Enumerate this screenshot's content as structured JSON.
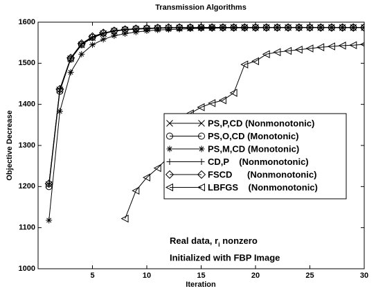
{
  "chart_data": {
    "type": "line",
    "title": "Transmission Algorithms",
    "x_label": "Iteration",
    "y_label": "Objective Decrease",
    "x": [
      1,
      2,
      3,
      4,
      5,
      6,
      7,
      8,
      9,
      10,
      11,
      12,
      13,
      14,
      15,
      16,
      17,
      18,
      19,
      20,
      21,
      22,
      23,
      24,
      25,
      26,
      27,
      28,
      29,
      30
    ],
    "xlim": [
      0,
      30
    ],
    "xticks": [
      5,
      10,
      15,
      20,
      25,
      30
    ],
    "ylim": [
      1000,
      1600
    ],
    "yticks": [
      1000,
      1100,
      1200,
      1300,
      1400,
      1500,
      1600
    ],
    "grid": false,
    "legend_position": "right",
    "series": [
      {
        "name": "PS,P,CD (Nonmonotonic)",
        "color": "#000000",
        "marker": "x",
        "values": [
          1205,
          1435,
          1511,
          1545,
          1562,
          1572,
          1578,
          1581,
          1583,
          1584,
          1585,
          1586,
          1586,
          1586,
          1587,
          1587,
          1587,
          1587,
          1587,
          1587,
          1587,
          1587,
          1587,
          1587,
          1587,
          1587,
          1587,
          1587,
          1587,
          1587
        ]
      },
      {
        "name": "PS,O,CD (Monotonic)",
        "color": "#000000",
        "marker": "o",
        "values": [
          1200,
          1432,
          1510,
          1545,
          1563,
          1573,
          1579,
          1582,
          1584,
          1585,
          1586,
          1586,
          1587,
          1587,
          1587,
          1587,
          1587,
          1587,
          1587,
          1587,
          1587,
          1587,
          1587,
          1587,
          1587,
          1587,
          1587,
          1587,
          1587,
          1587
        ]
      },
      {
        "name": "PS,M,CD (Monotonic)",
        "color": "#000000",
        "marker": "*",
        "values": [
          1118,
          1383,
          1478,
          1522,
          1545,
          1558,
          1567,
          1572,
          1576,
          1579,
          1581,
          1582,
          1583,
          1584,
          1585,
          1585,
          1586,
          1586,
          1586,
          1586,
          1587,
          1587,
          1587,
          1587,
          1587,
          1587,
          1587,
          1587,
          1587,
          1587
        ]
      },
      {
        "name": "CD,P    (Nonmonotonic)",
        "color": "#000000",
        "marker": "+",
        "values": [
          1206,
          1437,
          1512,
          1547,
          1563,
          1573,
          1579,
          1582,
          1584,
          1585,
          1586,
          1586,
          1587,
          1587,
          1587,
          1587,
          1587,
          1587,
          1587,
          1587,
          1587,
          1587,
          1587,
          1587,
          1587,
          1587,
          1587,
          1587,
          1587,
          1587
        ]
      },
      {
        "name": "FSCD      (Nonmonotonic)",
        "color": "#000000",
        "marker": "d",
        "values": [
          1207,
          1437,
          1513,
          1548,
          1565,
          1574,
          1579,
          1582,
          1584,
          1585,
          1586,
          1587,
          1587,
          1587,
          1587,
          1587,
          1587,
          1587,
          1587,
          1587,
          1587,
          1587,
          1587,
          1587,
          1587,
          1587,
          1587,
          1587,
          1587,
          1587
        ]
      },
      {
        "name": "LBFGS    (Nonmonotonic)",
        "color": "#000000",
        "marker": "<",
        "values": [
          null,
          null,
          null,
          null,
          null,
          null,
          null,
          1122,
          1190,
          1222,
          1245,
          1272,
          1305,
          1378,
          1393,
          1403,
          1410,
          1428,
          1497,
          1505,
          1522,
          1527,
          1530,
          1533,
          1536,
          1539,
          1541,
          1543,
          1544,
          1546
        ]
      }
    ],
    "annotations": [
      [
        "Real data, r",
        "i",
        " nonzero"
      ],
      [
        "Initialized with FBP Image"
      ]
    ]
  }
}
